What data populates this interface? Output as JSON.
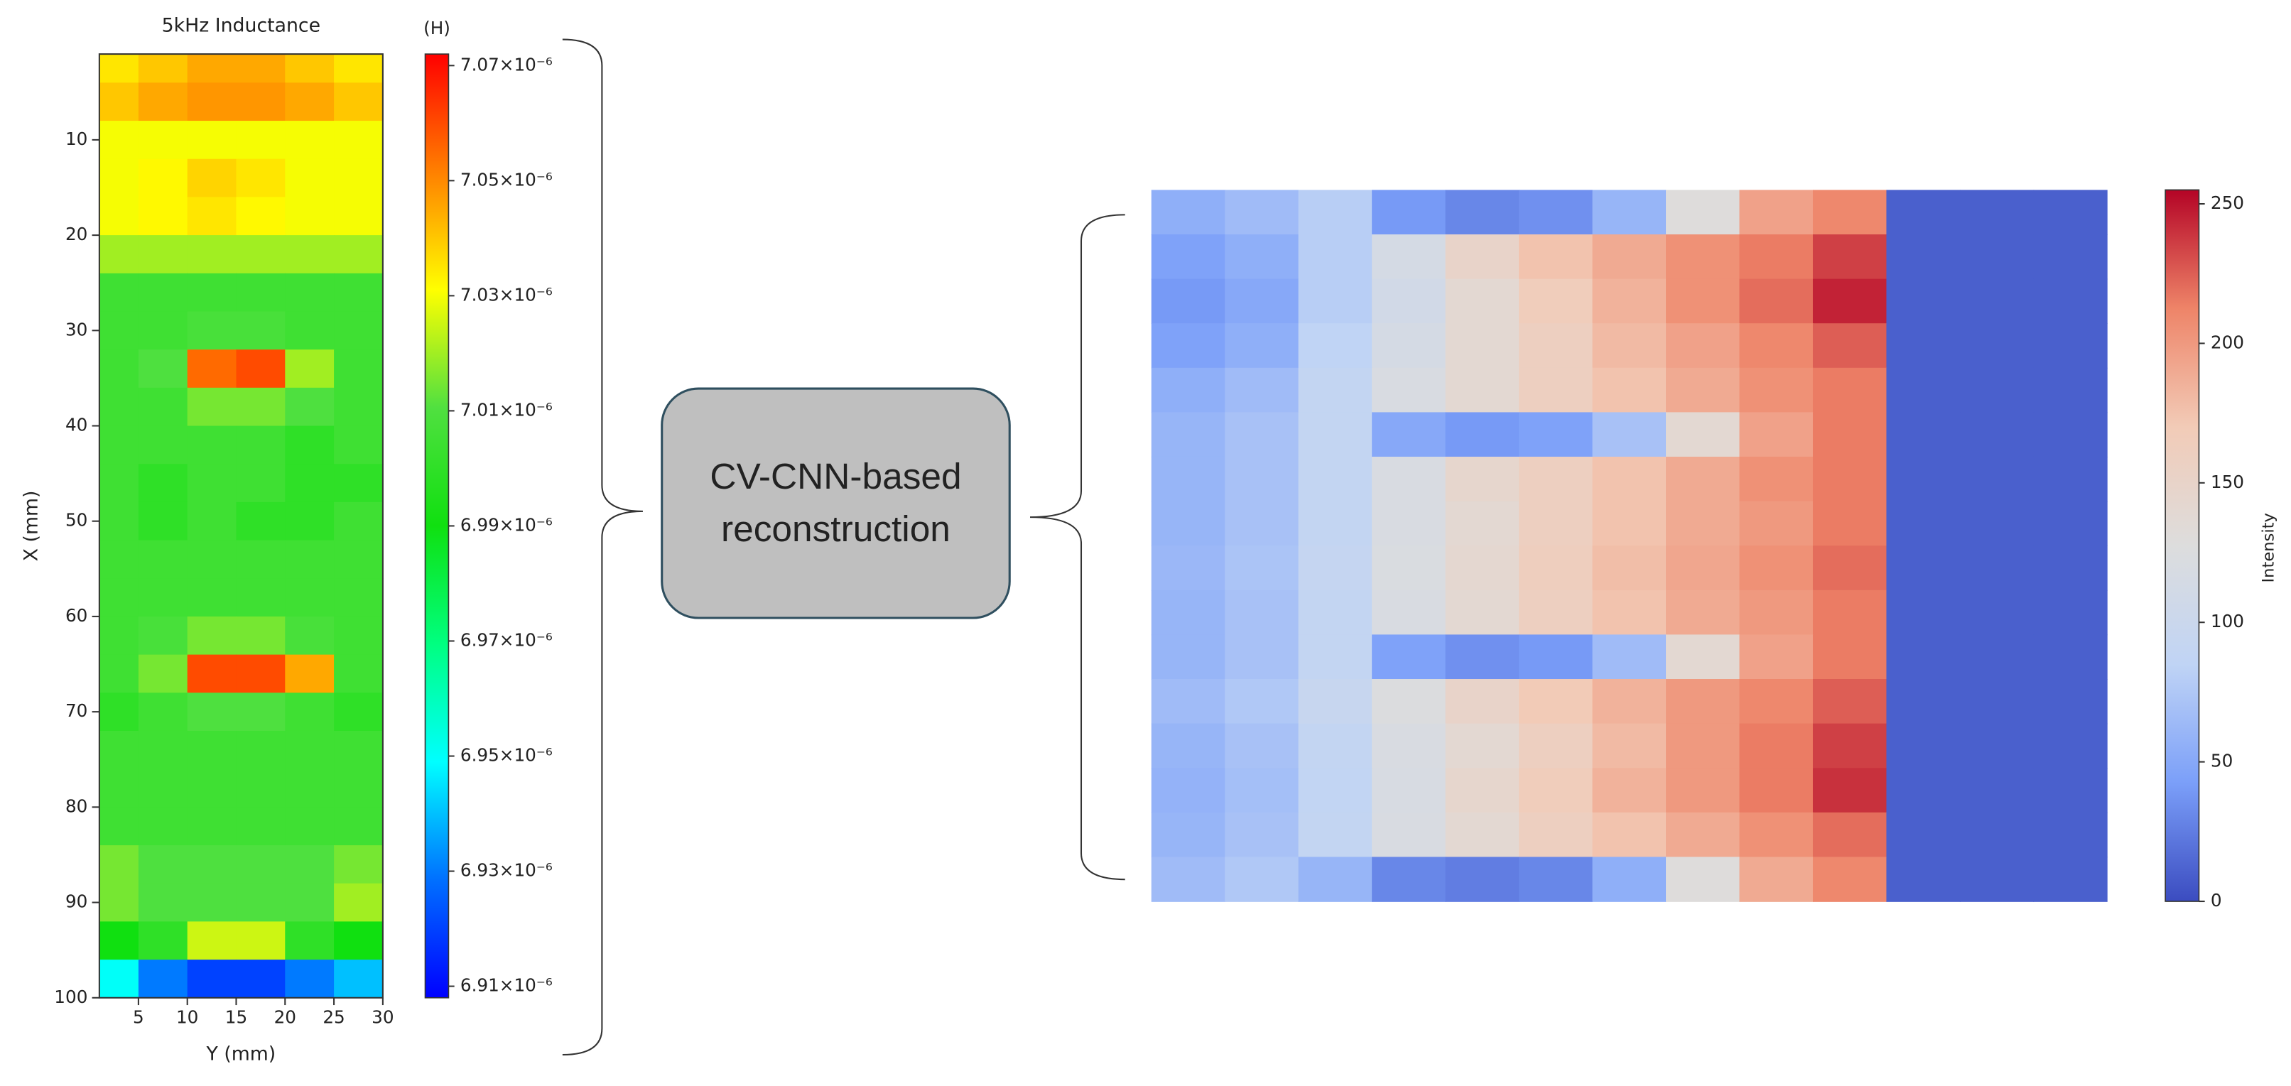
{
  "chart_data": [
    {
      "type": "heatmap",
      "title": "5kHz Inductance",
      "xlabel": "Y (mm)",
      "ylabel": "X (mm)",
      "colorbar_label": "(H)",
      "xbins": [
        1,
        5,
        10,
        15,
        20,
        25,
        30
      ],
      "ybins": [
        1,
        4,
        8,
        12,
        16,
        20,
        24,
        28,
        32,
        36,
        40,
        44,
        48,
        52,
        56,
        60,
        64,
        68,
        72,
        76,
        80,
        84,
        88,
        92,
        96,
        100
      ],
      "xlim": [
        1,
        30
      ],
      "ylim": [
        1,
        100
      ],
      "y_inverted": true,
      "xticks": [
        5,
        10,
        15,
        20,
        25,
        30
      ],
      "yticks": [
        10,
        20,
        30,
        40,
        50,
        60,
        70,
        80,
        90,
        100
      ],
      "zlim": [
        6.908e-06,
        7.072e-06
      ],
      "zticks": [
        {
          "value": 6.91e-06,
          "label": "6.91×10⁻⁶"
        },
        {
          "value": 6.93e-06,
          "label": "6.93×10⁻⁶"
        },
        {
          "value": 6.95e-06,
          "label": "6.95×10⁻⁶"
        },
        {
          "value": 6.97e-06,
          "label": "6.97×10⁻⁶"
        },
        {
          "value": 6.99e-06,
          "label": "6.99×10⁻⁶"
        },
        {
          "value": 7.01e-06,
          "label": "7.01×10⁻⁶"
        },
        {
          "value": 7.03e-06,
          "label": "7.03×10⁻⁶"
        },
        {
          "value": 7.05e-06,
          "label": "7.05×10⁻⁶"
        },
        {
          "value": 7.07e-06,
          "label": "7.07×10⁻⁶"
        }
      ],
      "colormap": [
        "#0000ff",
        "#0070ff",
        "#00ffff",
        "#00ff80",
        "#10e010",
        "#50e040",
        "#ffff00",
        "#ff8000",
        "#ff0000"
      ],
      "values": [
        [
          7.035e-06,
          7.04e-06,
          7.045e-06,
          7.045e-06,
          7.04e-06,
          7.035e-06
        ],
        [
          7.04e-06,
          7.045e-06,
          7.048e-06,
          7.048e-06,
          7.045e-06,
          7.04e-06
        ],
        [
          7.03e-06,
          7.03e-06,
          7.03e-06,
          7.03e-06,
          7.03e-06,
          7.03e-06
        ],
        [
          7.03e-06,
          7.032e-06,
          7.038e-06,
          7.035e-06,
          7.03e-06,
          7.03e-06
        ],
        [
          7.03e-06,
          7.032e-06,
          7.035e-06,
          7.032e-06,
          7.03e-06,
          7.03e-06
        ],
        [
          7.02e-06,
          7.02e-06,
          7.02e-06,
          7.02e-06,
          7.02e-06,
          7.02e-06
        ],
        [
          7.005e-06,
          7.005e-06,
          7.005e-06,
          7.005e-06,
          7.005e-06,
          7.005e-06
        ],
        [
          7.005e-06,
          7.005e-06,
          7.008e-06,
          7.008e-06,
          7.005e-06,
          7.005e-06
        ],
        [
          7.005e-06,
          7.01e-06,
          7.055e-06,
          7.06e-06,
          7.02e-06,
          7.005e-06
        ],
        [
          7.005e-06,
          7.005e-06,
          7.015e-06,
          7.015e-06,
          7.01e-06,
          7.005e-06
        ],
        [
          7.005e-06,
          7.005e-06,
          7.005e-06,
          7.005e-06,
          7e-06,
          7.005e-06
        ],
        [
          7.005e-06,
          7e-06,
          7.005e-06,
          7.005e-06,
          7e-06,
          7e-06
        ],
        [
          7.005e-06,
          7e-06,
          7.005e-06,
          7e-06,
          7e-06,
          7.005e-06
        ],
        [
          7.005e-06,
          7.005e-06,
          7.005e-06,
          7.005e-06,
          7.005e-06,
          7.005e-06
        ],
        [
          7.005e-06,
          7.005e-06,
          7.005e-06,
          7.005e-06,
          7.005e-06,
          7.005e-06
        ],
        [
          7.005e-06,
          7.008e-06,
          7.015e-06,
          7.015e-06,
          7.008e-06,
          7.005e-06
        ],
        [
          7.005e-06,
          7.015e-06,
          7.06e-06,
          7.06e-06,
          7.045e-06,
          7.005e-06
        ],
        [
          7e-06,
          7.005e-06,
          7.01e-06,
          7.01e-06,
          7.005e-06,
          7e-06
        ],
        [
          7.005e-06,
          7.005e-06,
          7.005e-06,
          7.005e-06,
          7.005e-06,
          7.005e-06
        ],
        [
          7.005e-06,
          7.005e-06,
          7.005e-06,
          7.005e-06,
          7.005e-06,
          7.005e-06
        ],
        [
          7.005e-06,
          7.005e-06,
          7.005e-06,
          7.005e-06,
          7.005e-06,
          7.005e-06
        ],
        [
          7.015e-06,
          7.01e-06,
          7.01e-06,
          7.01e-06,
          7.01e-06,
          7.015e-06
        ],
        [
          7.015e-06,
          7.01e-06,
          7.01e-06,
          7.01e-06,
          7.01e-06,
          7.02e-06
        ],
        [
          6.99e-06,
          7e-06,
          7.025e-06,
          7.025e-06,
          7e-06,
          6.99e-06
        ],
        [
          6.95e-06,
          6.93e-06,
          6.92e-06,
          6.92e-06,
          6.93e-06,
          6.94e-06
        ]
      ]
    },
    {
      "type": "heatmap",
      "colorbar_label": "Intensity",
      "zlim": [
        0,
        255
      ],
      "zticks": [
        0,
        50,
        100,
        150,
        200,
        250
      ],
      "colormap": [
        "#3b4cc0",
        "#7b9ff9",
        "#c0d4f5",
        "#dddddd",
        "#f2cbb7",
        "#ee8468",
        "#b40426"
      ],
      "values": [
        [
          55,
          65,
          80,
          40,
          30,
          35,
          60,
          130,
          195,
          210,
          10,
          10,
          10
        ],
        [
          45,
          55,
          80,
          115,
          150,
          175,
          190,
          205,
          215,
          235,
          10,
          10,
          10
        ],
        [
          40,
          50,
          80,
          110,
          140,
          165,
          185,
          205,
          220,
          245,
          10,
          10,
          10
        ],
        [
          45,
          55,
          85,
          115,
          140,
          160,
          180,
          195,
          210,
          225,
          10,
          10,
          10
        ],
        [
          55,
          65,
          90,
          120,
          140,
          160,
          175,
          190,
          205,
          215,
          10,
          10,
          10
        ],
        [
          60,
          70,
          90,
          50,
          40,
          45,
          70,
          140,
          195,
          215,
          10,
          10,
          10
        ],
        [
          60,
          70,
          90,
          120,
          145,
          160,
          175,
          190,
          205,
          215,
          10,
          10,
          10
        ],
        [
          60,
          70,
          90,
          120,
          140,
          160,
          175,
          190,
          200,
          215,
          10,
          10,
          10
        ],
        [
          62,
          72,
          92,
          122,
          142,
          162,
          178,
          192,
          205,
          220,
          10,
          10,
          10
        ],
        [
          60,
          70,
          90,
          120,
          140,
          160,
          175,
          190,
          200,
          215,
          10,
          10,
          10
        ],
        [
          60,
          70,
          90,
          45,
          35,
          40,
          65,
          140,
          195,
          215,
          10,
          10,
          10
        ],
        [
          65,
          75,
          95,
          125,
          150,
          170,
          185,
          200,
          210,
          225,
          10,
          10,
          10
        ],
        [
          60,
          70,
          90,
          120,
          140,
          160,
          180,
          200,
          215,
          235,
          10,
          10,
          10
        ],
        [
          58,
          68,
          88,
          118,
          145,
          165,
          185,
          200,
          215,
          240,
          10,
          10,
          10
        ],
        [
          60,
          70,
          90,
          120,
          140,
          160,
          175,
          190,
          205,
          220,
          10,
          10,
          10
        ],
        [
          65,
          75,
          60,
          30,
          25,
          30,
          55,
          130,
          190,
          210,
          10,
          10,
          10
        ]
      ]
    }
  ],
  "diagram": {
    "box": {
      "lines": [
        "CV-CNN-based",
        "reconstruction"
      ]
    }
  }
}
